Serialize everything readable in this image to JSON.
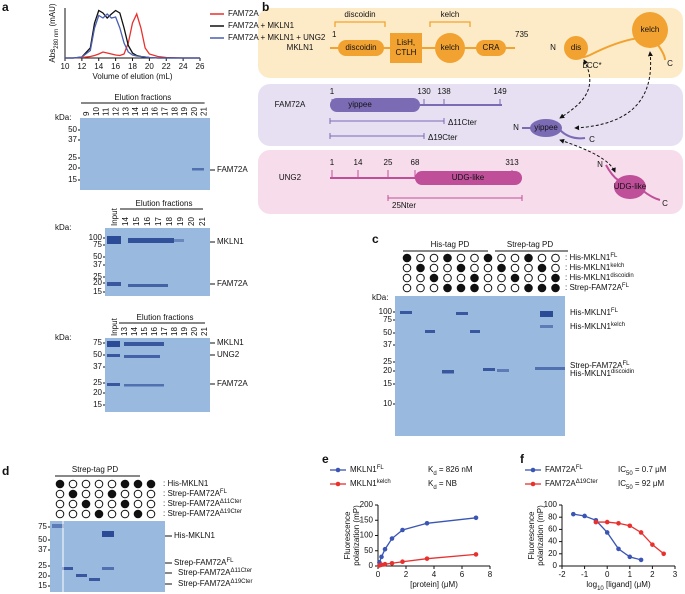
{
  "panel_labels": [
    "a",
    "b",
    "c",
    "d",
    "e",
    "f"
  ],
  "chart_data": [
    {
      "type": "line",
      "ylabel": {
        "text": "Abs",
        "sub": "280 nm",
        "rest": " (mAU)"
      },
      "xlabel": "Volume of elution (mL)",
      "x": [
        10,
        11,
        12,
        13,
        13.5,
        14,
        14.5,
        15,
        15.5,
        16,
        16.5,
        17,
        17.5,
        18,
        18.5,
        19,
        19.5,
        20,
        21,
        22,
        24,
        26
      ],
      "xlim": [
        10,
        26
      ],
      "xticks": [
        10,
        12,
        14,
        16,
        18,
        20,
        22,
        24,
        26
      ],
      "ylim": [
        0,
        100
      ],
      "series": [
        {
          "name": "FAM72A",
          "color": "#e8312f",
          "values": [
            0,
            0,
            1,
            3,
            5,
            8,
            12,
            10,
            8,
            6,
            5,
            8,
            30,
            70,
            88,
            60,
            20,
            8,
            3,
            1,
            0,
            0
          ]
        },
        {
          "name": "FAM72A + MKLN1",
          "color": "#111111",
          "values": [
            0,
            0,
            2,
            20,
            70,
            95,
            90,
            80,
            88,
            95,
            90,
            60,
            25,
            10,
            5,
            3,
            2,
            1,
            0,
            0,
            0,
            0
          ]
        },
        {
          "name": "FAM72A + MKLN1 + UNG2",
          "color": "#4a5fb0",
          "values": [
            0,
            0,
            2,
            15,
            60,
            85,
            80,
            88,
            80,
            82,
            60,
            30,
            12,
            6,
            4,
            3,
            2,
            1,
            0,
            0,
            0,
            0
          ]
        }
      ]
    },
    {
      "type": "line",
      "xlabel": "[protein] (μM)",
      "ylabel": [
        "Fluorescence",
        "polarization (mP)"
      ],
      "xlim": [
        0,
        8
      ],
      "xticks": [
        0,
        2,
        4,
        6,
        8
      ],
      "ylim": [
        0,
        200
      ],
      "yticks": [
        0,
        50,
        100,
        150,
        200
      ],
      "series": [
        {
          "name": "MKLN1",
          "name_sup": "FL",
          "annotation": {
            "text": "K",
            "sub": "d",
            "rest": " = 826 nM"
          },
          "color": "#3a55b4",
          "x": [
            0.1,
            0.25,
            0.5,
            1,
            1.75,
            3.5,
            7
          ],
          "values": [
            12,
            30,
            55,
            90,
            118,
            140,
            158
          ]
        },
        {
          "name": "MKLN1",
          "name_sup": "kelch",
          "annotation": {
            "text": "K",
            "sub": "d",
            "rest": " = NB"
          },
          "color": "#e8312f",
          "x": [
            0.1,
            0.25,
            0.5,
            1,
            1.75,
            3.5,
            7
          ],
          "values": [
            2,
            4,
            6,
            9,
            14,
            24,
            38
          ]
        }
      ]
    },
    {
      "type": "line",
      "xlabel": {
        "text": "log",
        "sub": "10",
        "rest": " [ligand] (μM)"
      },
      "ylabel": [
        "Fluorescence",
        "polarization (mP)"
      ],
      "xlim": [
        -2,
        3
      ],
      "xticks": [
        -2,
        -1,
        0,
        1,
        2,
        3
      ],
      "ylim": [
        0,
        100
      ],
      "yticks": [
        0,
        20,
        40,
        60,
        80,
        100
      ],
      "series": [
        {
          "name": "FAM72A",
          "name_sup": "FL",
          "annotation": {
            "text": "IC",
            "sub": "50",
            "rest": " = 0.7 μM"
          },
          "color": "#3a55b4",
          "x": [
            -1.5,
            -1,
            -0.5,
            0,
            0.5,
            1,
            1.5
          ],
          "values": [
            85,
            82,
            75,
            55,
            28,
            15,
            10
          ]
        },
        {
          "name": "FAM72A",
          "name_sup": "Δ19Cter",
          "annotation": {
            "text": "IC",
            "sub": "50",
            "rest": " = 92 μM"
          },
          "color": "#e8312f",
          "x": [
            -0.5,
            0,
            0.5,
            1,
            1.5,
            2,
            2.5
          ],
          "values": [
            72,
            72,
            70,
            66,
            55,
            35,
            20
          ]
        }
      ]
    }
  ],
  "gels_a": [
    {
      "header": "Elution fractions",
      "lanes": [
        "9",
        "10",
        "11",
        "12",
        "13",
        "14",
        "15",
        "16",
        "17",
        "18",
        "19",
        "20",
        "21"
      ],
      "kda": "kDa:",
      "markers": [
        50,
        37,
        25,
        20,
        15
      ],
      "labels": [
        "FAM72A"
      ]
    },
    {
      "header": "Elution fractions",
      "lanes": [
        "Input",
        "14",
        "15",
        "16",
        "17",
        "18",
        "19",
        "20",
        "21"
      ],
      "kda": "kDa:",
      "markers": [
        100,
        75,
        50,
        37,
        25,
        20,
        15
      ],
      "labels": [
        "MKLN1",
        "FAM72A"
      ]
    },
    {
      "header": "Elution fractions",
      "lanes": [
        "Input",
        "13",
        "14",
        "15",
        "16",
        "17",
        "18",
        "19",
        "20",
        "21"
      ],
      "kda": "kDa:",
      "markers": [
        75,
        50,
        37,
        25,
        20,
        15
      ],
      "labels": [
        "MKLN1",
        "UNG2",
        "FAM72A"
      ]
    }
  ],
  "domains": {
    "mkln1": {
      "name": "MKLN1",
      "start": 1,
      "end": 735,
      "brackets": [
        "discoidin",
        "kelch"
      ],
      "domains": [
        "discoidin",
        [
          "LisH,",
          "CTLH"
        ],
        "kelch",
        "CRA"
      ],
      "cartoon": [
        "N",
        "dis",
        "LCC*",
        "kelch",
        "C"
      ]
    },
    "fam72a": {
      "name": "FAM72A",
      "positions": [
        1,
        130,
        138,
        149
      ],
      "domain": "yippee",
      "truncations": [
        "Δ11Cter",
        "Δ19Cter"
      ],
      "cartoon": [
        "N",
        "yippee",
        "C"
      ]
    },
    "ung2": {
      "name": "UNG2",
      "positions": [
        1,
        14,
        25,
        68,
        313
      ],
      "domain": "UDG-like",
      "truncations": [
        "25Nter"
      ],
      "cartoon": [
        "N",
        "UDG-like",
        "C"
      ]
    }
  },
  "pulldown_c": {
    "headers": [
      "His-tag PD",
      "Strep-tag PD"
    ],
    "rows": [
      {
        "text": ": His-MKLN1",
        "sup": "FL"
      },
      {
        "text": ": His-MKLN1",
        "sup": "kelch"
      },
      {
        "text": ": His-MKLN1",
        "sup": "discoidin"
      },
      {
        "text": ": Strep-FAM72A",
        "sup": "FL"
      }
    ],
    "kda": "kDa:",
    "markers": [
      100,
      75,
      50,
      37,
      25,
      20,
      15,
      10
    ],
    "labels": [
      {
        "text": "His-MKLN1",
        "sup": "FL"
      },
      {
        "text": "His-MKLN1",
        "sup": "kelch"
      },
      {
        "text": "Strep-FAM72A",
        "sup": "FL"
      },
      {
        "text": "His-MKLN1",
        "sup": "discoidin"
      }
    ]
  },
  "pulldown_d": {
    "header": "Strep-tag PD",
    "rows": [
      {
        "text": ": His-MKLN1"
      },
      {
        "text": ": Strep-FAM72A",
        "sup": "FL"
      },
      {
        "text": ": Strep-FAM72A",
        "sup": "Δ11Cter"
      },
      {
        "text": ": Strep-FAM72A",
        "sup": "Δ19Cter"
      }
    ],
    "markers": [
      75,
      50,
      37,
      25,
      20,
      15
    ],
    "labels": [
      {
        "text": "His-MKLN1"
      },
      {
        "text": "Strep-FAM72A",
        "sup": "FL"
      },
      {
        "text": "Strep-FAM72A",
        "sup": "Δ11Cter"
      },
      {
        "text": "Strep-FAM72A",
        "sup": "Δ19Cter"
      }
    ]
  }
}
